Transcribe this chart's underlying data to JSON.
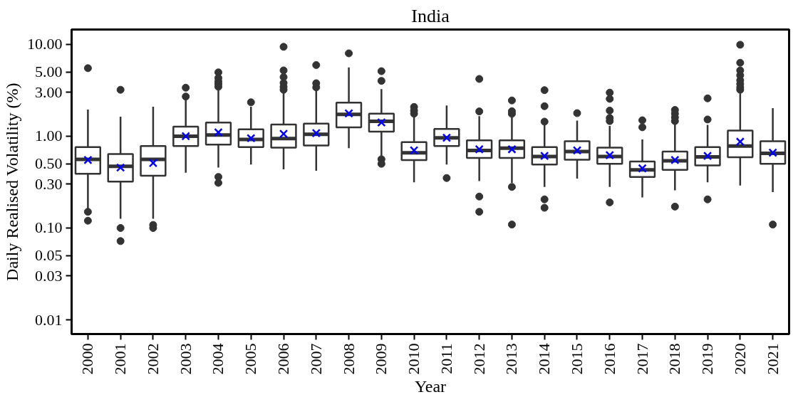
{
  "chart_data": {
    "type": "box",
    "title": "India",
    "xlabel": "Year",
    "ylabel": "Daily Realised Volatility (%)",
    "categories": [
      "2000",
      "2001",
      "2002",
      "2003",
      "2004",
      "2005",
      "2006",
      "2007",
      "2008",
      "2009",
      "2010",
      "2011",
      "2012",
      "2013",
      "2014",
      "2015",
      "2016",
      "2017",
      "2018",
      "2019",
      "2020",
      "2021"
    ],
    "log": true,
    "grid": false,
    "ylim": [
      0.007,
      14.5
    ],
    "yticks": [
      {
        "value": 0.01,
        "label": "0.01"
      },
      {
        "value": 0.03,
        "label": "0.03"
      },
      {
        "value": 0.05,
        "label": "0.05"
      },
      {
        "value": 0.1,
        "label": "0.10"
      },
      {
        "value": 0.3,
        "label": "0.30"
      },
      {
        "value": 0.5,
        "label": "0.50"
      },
      {
        "value": 1,
        "label": "1.00"
      },
      {
        "value": 3,
        "label": "3.00"
      },
      {
        "value": 5,
        "label": "5.00"
      },
      {
        "value": 10,
        "label": "10.00"
      }
    ],
    "series": [
      {
        "color": "#333333",
        "boxes": [
          {
            "low": 0.16,
            "q1": 0.39,
            "median": 0.56,
            "q3": 0.76,
            "high": 1.95,
            "mean": 0.55,
            "outliers": [
              5.5,
              0.15,
              0.12
            ]
          },
          {
            "low": 0.126,
            "q1": 0.32,
            "median": 0.47,
            "q3": 0.64,
            "high": 1.63,
            "mean": 0.455,
            "outliers": [
              3.2,
              0.1,
              0.072
            ]
          },
          {
            "low": 0.126,
            "q1": 0.37,
            "median": 0.56,
            "q3": 0.78,
            "high": 2.09,
            "mean": 0.51,
            "outliers": [
              0.108,
              0.1
            ]
          },
          {
            "low": 0.4,
            "q1": 0.78,
            "median": 1.0,
            "q3": 1.27,
            "high": 2.54,
            "mean": 1.0,
            "outliers": [
              3.37,
              2.7
            ]
          },
          {
            "low": 0.455,
            "q1": 0.81,
            "median": 1.03,
            "q3": 1.41,
            "high": 3.17,
            "mean": 1.1,
            "outliers": [
              4.95,
              4.3,
              3.95,
              3.7,
              3.45,
              0.36,
              0.31
            ]
          },
          {
            "low": 0.49,
            "q1": 0.76,
            "median": 0.92,
            "q3": 1.19,
            "high": 2.09,
            "mean": 0.95,
            "outliers": [
              2.34
            ]
          },
          {
            "low": 0.435,
            "q1": 0.75,
            "median": 0.94,
            "q3": 1.34,
            "high": 3.02,
            "mean": 1.06,
            "outliers": [
              9.4,
              5.2,
              4.4,
              3.8,
              3.45,
              3.2
            ]
          },
          {
            "low": 0.42,
            "q1": 0.79,
            "median": 1.05,
            "q3": 1.37,
            "high": 3.17,
            "mean": 1.08,
            "outliers": [
              5.95,
              3.77,
              3.4
            ]
          },
          {
            "low": 0.74,
            "q1": 1.25,
            "median": 1.73,
            "q3": 2.32,
            "high": 5.6,
            "mean": 1.77,
            "outliers": [
              7.98
            ]
          },
          {
            "low": 0.61,
            "q1": 1.12,
            "median": 1.45,
            "q3": 1.76,
            "high": 3.25,
            "mean": 1.41,
            "outliers": [
              5.1,
              4.0,
              0.56,
              0.5
            ]
          },
          {
            "low": 0.315,
            "q1": 0.55,
            "median": 0.66,
            "q3": 0.86,
            "high": 1.7,
            "mean": 0.7,
            "outliers": [
              2.08,
              1.9,
              1.76
            ]
          },
          {
            "low": 0.49,
            "q1": 0.78,
            "median": 0.96,
            "q3": 1.2,
            "high": 2.16,
            "mean": 0.96,
            "outliers": [
              0.35
            ]
          },
          {
            "low": 0.325,
            "q1": 0.58,
            "median": 0.7,
            "q3": 0.9,
            "high": 1.65,
            "mean": 0.72,
            "outliers": [
              4.2,
              1.86,
              0.22,
              0.15
            ]
          },
          {
            "low": 0.31,
            "q1": 0.58,
            "median": 0.74,
            "q3": 0.9,
            "high": 1.6,
            "mean": 0.72,
            "outliers": [
              2.45,
              1.87,
              1.75,
              0.28,
              0.109
            ]
          },
          {
            "low": 0.28,
            "q1": 0.49,
            "median": 0.6,
            "q3": 0.76,
            "high": 1.33,
            "mean": 0.61,
            "outliers": [
              3.17,
              2.12,
              1.44,
              0.205,
              0.166
            ]
          },
          {
            "low": 0.345,
            "q1": 0.555,
            "median": 0.68,
            "q3": 0.88,
            "high": 1.48,
            "mean": 0.7,
            "outliers": [
              1.78
            ]
          },
          {
            "low": 0.28,
            "q1": 0.5,
            "median": 0.6,
            "q3": 0.75,
            "high": 1.29,
            "mean": 0.62,
            "outliers": [
              2.98,
              2.55,
              1.9,
              1.58,
              1.46,
              0.19
            ]
          },
          {
            "low": 0.215,
            "q1": 0.36,
            "median": 0.43,
            "q3": 0.53,
            "high": 0.92,
            "mean": 0.446,
            "outliers": [
              1.49,
              1.25
            ]
          },
          {
            "low": 0.257,
            "q1": 0.43,
            "median": 0.54,
            "q3": 0.68,
            "high": 1.37,
            "mean": 0.55,
            "outliers": [
              1.93,
              1.76,
              1.6,
              1.46,
              0.171
            ]
          },
          {
            "low": 0.315,
            "q1": 0.48,
            "median": 0.595,
            "q3": 0.76,
            "high": 1.33,
            "mean": 0.61,
            "outliers": [
              2.58,
              1.52,
              0.205
            ]
          },
          {
            "low": 0.29,
            "q1": 0.59,
            "median": 0.78,
            "q3": 1.15,
            "high": 2.93,
            "mean": 0.87,
            "outliers": [
              9.9,
              6.3,
              5.2,
              4.6,
              4.06,
              3.7,
              3.4,
              3.2
            ]
          },
          {
            "low": 0.246,
            "q1": 0.5,
            "median": 0.65,
            "q3": 0.88,
            "high": 2.02,
            "mean": 0.66,
            "outliers": [
              0.109
            ]
          }
        ]
      }
    ]
  }
}
